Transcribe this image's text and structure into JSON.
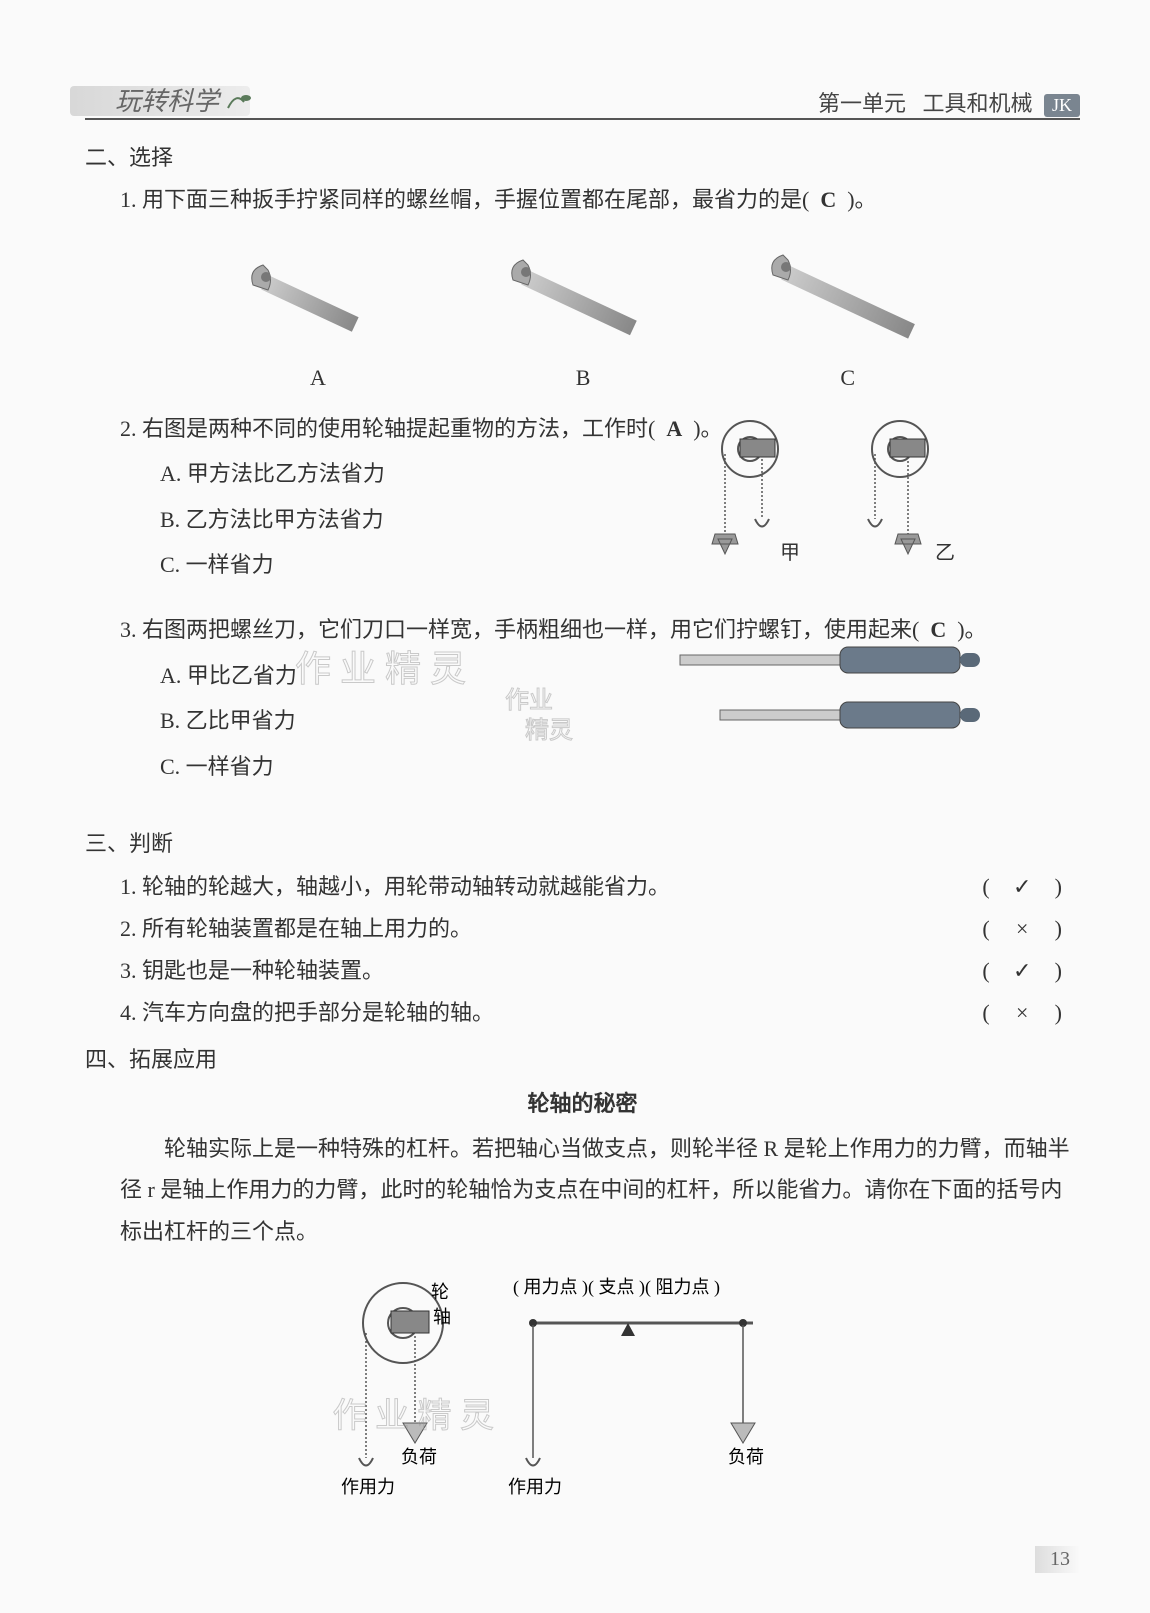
{
  "header": {
    "left": "玩转科学",
    "right_prefix": "第一单元",
    "right_title": "工具和机械",
    "badge": "JK"
  },
  "section2": {
    "title": "二、选择",
    "q1": {
      "num": "1",
      "text": ". 用下面三种扳手拧紧同样的螺丝帽，手握位置都在尾部，最省力的是(",
      "answer": "C",
      "tail": ")。",
      "labels": {
        "a": "A",
        "b": "B",
        "c": "C"
      }
    },
    "q2": {
      "num": "2",
      "text": ". 右图是两种不同的使用轮轴提起重物的方法，工作时(",
      "answer": "A",
      "tail": ")。",
      "optA": "A. 甲方法比乙方法省力",
      "optB": "B. 乙方法比甲方法省力",
      "optC": "C. 一样省力",
      "label_jia": "甲",
      "label_yi": "乙"
    },
    "q3": {
      "num": "3",
      "text": ". 右图两把螺丝刀，它们刀口一样宽，手柄粗细也一样，用它们拧螺钉，使用起来(",
      "answer": "C",
      "tail": ")。",
      "optA": "A. 甲比乙省力",
      "optB": "B. 乙比甲省力",
      "optC": "C. 一样省力"
    }
  },
  "section3": {
    "title": "三、判断",
    "items": [
      {
        "num": "1",
        "text": ". 轮轴的轮越大，轴越小，用轮带动轴转动就越能省力。",
        "mark": "✓"
      },
      {
        "num": "2",
        "text": ". 所有轮轴装置都是在轴上用力的。",
        "mark": "×"
      },
      {
        "num": "3",
        "text": ". 钥匙也是一种轮轴装置。",
        "mark": "✓"
      },
      {
        "num": "4",
        "text": ". 汽车方向盘的把手部分是轮轴的轴。",
        "mark": "×"
      }
    ]
  },
  "section4": {
    "title": "四、拓展应用",
    "subtitle": "轮轴的秘密",
    "body": "轮轴实际上是一种特殊的杠杆。若把轴心当做支点，则轮半径 R 是轮上作用力的力臂，而轴半径 r 是轴上作用力的力臂，此时的轮轴恰为支点在中间的杠杆，所以能省力。请你在下面的括号内标出杠杆的三个点。",
    "diagram": {
      "lun": "轮",
      "zhou": "轴",
      "fuhe": "负荷",
      "zuoyongli": "作用力",
      "answers": "( 用力点 )( 支点 )( 阻力点 )"
    }
  },
  "watermarks": {
    "w1": "作 业 精 灵",
    "w2": "作业",
    "w3": "精灵"
  },
  "page_number": "13"
}
